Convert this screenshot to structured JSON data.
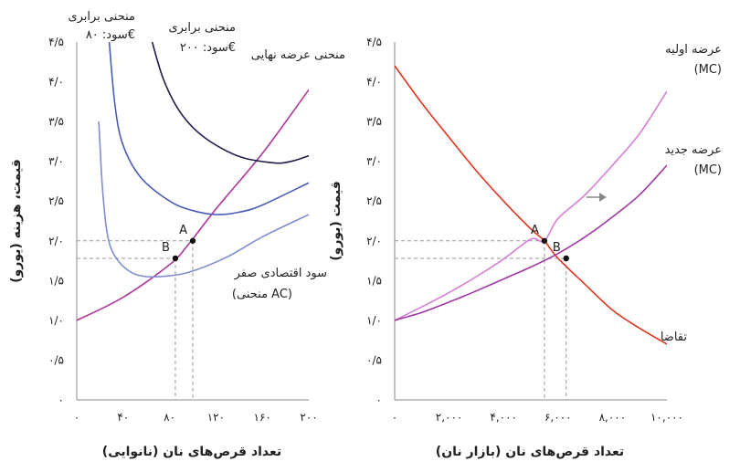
{
  "chart_data": [
    {
      "type": "line",
      "panel": "left",
      "xlabel": "تعداد قرص‌های نان (نانوایی)",
      "ylabel": "قیمت، هزینه (یورو)",
      "xlim": [
        0,
        200
      ],
      "ylim": [
        0,
        4.5
      ],
      "xticks": [
        {
          "v": 0,
          "t": "۰"
        },
        {
          "v": 40,
          "t": "۴۰"
        },
        {
          "v": 80,
          "t": "۸۰"
        },
        {
          "v": 120,
          "t": "۱۲۰"
        },
        {
          "v": 160,
          "t": "۱۶۰"
        },
        {
          "v": 200,
          "t": "۲۰۰"
        }
      ],
      "yticks": [
        {
          "v": 0,
          "t": "۰"
        },
        {
          "v": 0.5,
          "t": "۰/۵"
        },
        {
          "v": 1.0,
          "t": "۱/۰"
        },
        {
          "v": 1.5,
          "t": "۱/۵"
        },
        {
          "v": 2.0,
          "t": "۲/۰"
        },
        {
          "v": 2.5,
          "t": "۲/۵"
        },
        {
          "v": 3.0,
          "t": "۳/۰"
        },
        {
          "v": 3.5,
          "t": "۳/۵"
        },
        {
          "v": 4.0,
          "t": "۴/۰"
        },
        {
          "v": 4.5,
          "t": "۴/۵"
        }
      ],
      "series": [
        {
          "key": "mc",
          "name": "منحنی عرضه نهایی",
          "color": "#b0369a",
          "points": [
            [
              0,
              1.0
            ],
            [
              40,
              1.29
            ],
            [
              80,
              1.7
            ],
            [
              96,
              1.95
            ],
            [
              120,
              2.4
            ],
            [
              160,
              3.1
            ],
            [
              200,
              3.9
            ]
          ]
        },
        {
          "key": "ac",
          "name": "منحنی AC",
          "color": "#7f8ed0",
          "points": [
            [
              19,
              3.5
            ],
            [
              22,
              2.7
            ],
            [
              26,
              2.12
            ],
            [
              32,
              1.83
            ],
            [
              45,
              1.62
            ],
            [
              60,
              1.55
            ],
            [
              80,
              1.56
            ],
            [
              100,
              1.62
            ],
            [
              130,
              1.8
            ],
            [
              160,
              2.05
            ],
            [
              200,
              2.33
            ]
          ]
        },
        {
          "key": "iso80",
          "name": "منحنی برابری سود: ۸۰€",
          "color": "#4a5cb8",
          "points": [
            [
              28,
              4.5
            ],
            [
              33,
              3.7
            ],
            [
              40,
              3.2
            ],
            [
              55,
              2.8
            ],
            [
              80,
              2.5
            ],
            [
              100,
              2.38
            ],
            [
              120,
              2.33
            ],
            [
              140,
              2.36
            ],
            [
              160,
              2.45
            ],
            [
              200,
              2.73
            ]
          ]
        },
        {
          "key": "iso200",
          "name": "منحنی برابری سود: ۲۰۰€",
          "color": "#1e1f4a",
          "points": [
            [
              65,
              4.5
            ],
            [
              75,
              4.02
            ],
            [
              90,
              3.6
            ],
            [
              110,
              3.3
            ],
            [
              140,
              3.06
            ],
            [
              170,
              2.98
            ],
            [
              185,
              3.0
            ],
            [
              200,
              3.07
            ]
          ]
        }
      ],
      "points": [
        {
          "label": "A",
          "x": 100,
          "y": 2.0
        },
        {
          "label": "B",
          "x": 85,
          "y": 1.78
        }
      ],
      "annotations": {
        "iso80_line1": "منحنی برابری",
        "iso80_line2": "سود: ۸۰€",
        "iso200_line1": "منحنی برابری",
        "iso200_line2": "سود: ۲۰۰€",
        "mc_label": "منحنی عرضه نهایی",
        "ac_line1": "سود اقتصادی صفر",
        "ac_line2": "(منحنی AC)"
      }
    },
    {
      "type": "line",
      "panel": "right",
      "xlabel": "تعداد قرص‌های نان (بازار نان)",
      "ylabel": "قیمت (یورو)",
      "xlim": [
        0,
        10000
      ],
      "ylim": [
        0,
        4.5
      ],
      "xticks": [
        {
          "v": 0,
          "t": "۰"
        },
        {
          "v": 2000,
          "t": "۲,۰۰۰"
        },
        {
          "v": 4000,
          "t": "۴,۰۰۰"
        },
        {
          "v": 6000,
          "t": "۶,۰۰۰"
        },
        {
          "v": 8000,
          "t": "۸,۰۰۰"
        },
        {
          "v": 10000,
          "t": "۱۰,۰۰۰"
        }
      ],
      "yticks": [
        {
          "v": 0,
          "t": "۰"
        },
        {
          "v": 0.5,
          "t": "۰/۵"
        },
        {
          "v": 1.0,
          "t": "۱/۰"
        },
        {
          "v": 1.5,
          "t": "۱/۵"
        },
        {
          "v": 2.0,
          "t": "۲/۰"
        },
        {
          "v": 2.5,
          "t": "۲/۵"
        },
        {
          "v": 3.0,
          "t": "۳/۰"
        },
        {
          "v": 3.5,
          "t": "۳/۵"
        },
        {
          "v": 4.0,
          "t": "۴/۰"
        },
        {
          "v": 4.5,
          "t": "۴/۵"
        }
      ],
      "series": [
        {
          "key": "demand",
          "name": "تقاضا",
          "color": "#e2351e",
          "points": [
            [
              0,
              4.2
            ],
            [
              1000,
              3.73
            ],
            [
              2000,
              3.3
            ],
            [
              3000,
              2.88
            ],
            [
              4000,
              2.5
            ],
            [
              5000,
              2.15
            ],
            [
              5500,
              2.0
            ],
            [
              6000,
              1.78
            ],
            [
              7000,
              1.45
            ],
            [
              8000,
              1.13
            ],
            [
              9000,
              0.9
            ],
            [
              10000,
              0.7
            ]
          ]
        },
        {
          "key": "supply1",
          "name": "عرضه اولیه (MC)",
          "color": "#d57ed6",
          "points": [
            [
              0,
              1.0
            ],
            [
              1000,
              1.17
            ],
            [
              2000,
              1.35
            ],
            [
              3000,
              1.55
            ],
            [
              4000,
              1.77
            ],
            [
              5000,
              2.02
            ],
            [
              5500,
              2.0
            ],
            [
              6000,
              2.28
            ],
            [
              7000,
              2.58
            ],
            [
              8000,
              2.95
            ],
            [
              9000,
              3.35
            ],
            [
              10000,
              3.88
            ]
          ]
        },
        {
          "key": "supply2",
          "name": "عرضه جدید (MC)",
          "color": "#a037a4",
          "points": [
            [
              0,
              1.0
            ],
            [
              1000,
              1.1
            ],
            [
              2000,
              1.23
            ],
            [
              3000,
              1.37
            ],
            [
              4000,
              1.52
            ],
            [
              5000,
              1.67
            ],
            [
              6000,
              1.84
            ],
            [
              7000,
              2.05
            ],
            [
              8000,
              2.3
            ],
            [
              9000,
              2.58
            ],
            [
              10000,
              2.95
            ]
          ]
        }
      ],
      "points": [
        {
          "label": "A",
          "x": 5500,
          "y": 2.0
        },
        {
          "label": "B",
          "x": 6300,
          "y": 1.78
        }
      ],
      "annotations": {
        "supply1_line1": "عرضه اولیه",
        "supply1_line2": "(MC)",
        "supply2_line1": "عرضه جدید",
        "supply2_line2": "(MC)",
        "demand_label": "تقاضا"
      }
    }
  ]
}
